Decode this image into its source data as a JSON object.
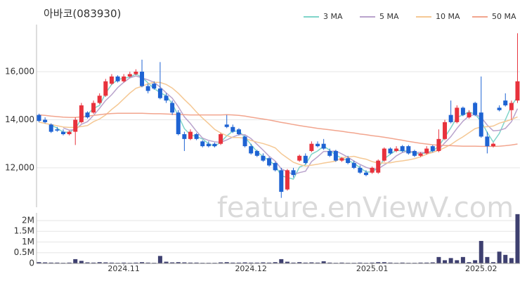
{
  "chart_data": [
    {
      "type": "candlestick",
      "title": "아바코(083930)",
      "watermark": "feature.enViewV.com",
      "up_color": "#e8323c",
      "down_color": "#1e63d3",
      "open": [
        14200,
        14000,
        13800,
        13600,
        13500,
        13400,
        13500,
        13900,
        14300,
        14300,
        14700,
        15000,
        15500,
        15800,
        15600,
        15800,
        15900,
        16000,
        15400,
        15500,
        15300,
        15000,
        14700,
        14300,
        13400,
        13200,
        13400,
        13100,
        13000,
        13000,
        13000,
        13800,
        13700,
        13600,
        13300,
        12900,
        12700,
        12500,
        12400,
        12200,
        11900,
        11100,
        11900,
        12300,
        12500,
        12700,
        13000,
        13000,
        12700,
        12700,
        12300,
        12400,
        12200,
        12000,
        11800,
        11800,
        11800,
        12300,
        12800,
        12700,
        12900,
        12900,
        12700,
        12500,
        12600,
        12900,
        12700,
        13200,
        14200,
        13900,
        14500,
        14100,
        14700,
        14300,
        13300,
        12900,
        14500,
        14800,
        14400,
        14800
      ],
      "high": [
        14250,
        14100,
        13850,
        13700,
        13600,
        13550,
        14100,
        14700,
        14350,
        14800,
        15100,
        15700,
        15900,
        15850,
        15900,
        16000,
        16100,
        16500,
        15500,
        15600,
        16400,
        15100,
        14800,
        14400,
        13500,
        13600,
        13450,
        13150,
        13100,
        13050,
        13450,
        14200,
        13800,
        13650,
        13350,
        13000,
        12750,
        12600,
        12450,
        12250,
        12000,
        11950,
        12000,
        12550,
        12600,
        13100,
        13100,
        13200,
        12800,
        12750,
        12450,
        12500,
        12300,
        12100,
        11900,
        12050,
        12350,
        12850,
        12850,
        12900,
        12950,
        12950,
        12750,
        12650,
        12900,
        12950,
        13600,
        14000,
        14800,
        14600,
        14550,
        14400,
        14750,
        15800,
        13500,
        13050,
        14600,
        15100,
        14800,
        17600
      ],
      "low": [
        13900,
        13850,
        13450,
        13500,
        13350,
        13350,
        12950,
        13850,
        14050,
        14250,
        14650,
        14950,
        15450,
        15550,
        15550,
        15750,
        15850,
        15350,
        15100,
        15250,
        14850,
        14700,
        14200,
        13350,
        12700,
        13150,
        13150,
        12850,
        12850,
        12850,
        12950,
        13650,
        13450,
        13350,
        12850,
        12550,
        12450,
        12250,
        12050,
        11850,
        10750,
        11050,
        11600,
        12250,
        12150,
        12650,
        12850,
        12750,
        12450,
        12250,
        12250,
        12150,
        11950,
        11750,
        11650,
        11750,
        11750,
        12250,
        12550,
        12650,
        12650,
        12550,
        12450,
        12450,
        12550,
        12650,
        12650,
        13150,
        13850,
        13850,
        14150,
        14050,
        14150,
        13250,
        12600,
        12850,
        14350,
        14550,
        14000,
        14700
      ],
      "close": [
        13950,
        13900,
        13500,
        13550,
        13400,
        13500,
        14000,
        14600,
        14100,
        14700,
        15000,
        15600,
        15800,
        15600,
        15800,
        15900,
        16000,
        15400,
        15200,
        15300,
        14900,
        14800,
        14300,
        13400,
        13200,
        13500,
        13200,
        12900,
        12900,
        12900,
        13400,
        13700,
        13500,
        13400,
        12900,
        12600,
        12500,
        12300,
        12100,
        11900,
        11000,
        11900,
        11700,
        12500,
        12200,
        13000,
        12900,
        12800,
        12500,
        12300,
        12400,
        12200,
        12000,
        11800,
        11700,
        12000,
        12300,
        12800,
        12600,
        12800,
        12700,
        12600,
        12500,
        12600,
        12800,
        12700,
        13200,
        13900,
        13900,
        14500,
        14200,
        14300,
        14200,
        13300,
        12900,
        13000,
        14400,
        14600,
        14700,
        15600
      ],
      "series": [
        {
          "name": "3 MA",
          "color": "#7fd4c9",
          "values": [
            null,
            null,
            13780,
            13650,
            13480,
            13480,
            13630,
            14030,
            14230,
            14470,
            14600,
            15100,
            15470,
            15670,
            15730,
            15770,
            15900,
            15770,
            15530,
            15300,
            15130,
            15000,
            14670,
            14170,
            13630,
            13370,
            13300,
            13200,
            13000,
            12900,
            13070,
            13330,
            13530,
            13530,
            13270,
            12970,
            12670,
            12470,
            12300,
            12100,
            11670,
            11600,
            11530,
            12030,
            12130,
            12570,
            12700,
            12900,
            12730,
            12530,
            12400,
            12300,
            12200,
            12000,
            11830,
            11830,
            12000,
            12370,
            12570,
            12730,
            12700,
            12700,
            12600,
            12570,
            12630,
            12700,
            12900,
            13270,
            13670,
            14100,
            14200,
            14330,
            14230,
            13930,
            13470,
            13070,
            13430,
            14000,
            14570,
            14970
          ]
        },
        {
          "name": "5 MA",
          "color": "#b9a3cc",
          "values": [
            null,
            null,
            null,
            null,
            13660,
            13570,
            13590,
            13810,
            13920,
            14180,
            14480,
            14800,
            15040,
            15340,
            15560,
            15740,
            15820,
            15740,
            15660,
            15560,
            15360,
            15120,
            14900,
            14540,
            14120,
            13840,
            13520,
            13240,
            13140,
            13080,
            13060,
            13160,
            13280,
            13380,
            13380,
            13220,
            12980,
            12740,
            12480,
            12280,
            11960,
            11840,
            11720,
            11800,
            11860,
            12260,
            12460,
            12680,
            12680,
            12700,
            12580,
            12440,
            12280,
            12140,
            12020,
            11940,
            11960,
            12120,
            12280,
            12500,
            12640,
            12700,
            12640,
            12640,
            12640,
            12640,
            12760,
            13040,
            13300,
            13640,
            13940,
            14160,
            14220,
            14100,
            13780,
            13540,
            13560,
            13640,
            13920,
            14460
          ]
        },
        {
          "name": "10 MA",
          "color": "#f5c894",
          "values": [
            13900,
            13850,
            13800,
            13750,
            13700,
            13680,
            13680,
            13720,
            13760,
            13920,
            14030,
            14200,
            14430,
            14630,
            14870,
            15110,
            15310,
            15390,
            15500,
            15560,
            15550,
            15470,
            15320,
            15100,
            14840,
            14600,
            14320,
            14070,
            13840,
            13600,
            13450,
            13340,
            13260,
            13260,
            13230,
            13140,
            13070,
            13010,
            12930,
            12830,
            12590,
            12410,
            12230,
            12140,
            12070,
            12110,
            12150,
            12200,
            12240,
            12280,
            12420,
            12450,
            12480,
            12410,
            12360,
            12260,
            12200,
            12200,
            12210,
            12260,
            12290,
            12330,
            12380,
            12460,
            12570,
            12640,
            12730,
            12840,
            12970,
            13140,
            13290,
            13460,
            13630,
            13700,
            13710,
            13740,
            13860,
            13930,
            14010,
            14120
          ]
        },
        {
          "name": "50 MA",
          "color": "#f2a58e",
          "values": [
            14200,
            14180,
            14150,
            14130,
            14110,
            14100,
            14100,
            14120,
            14150,
            14180,
            14210,
            14240,
            14260,
            14270,
            14270,
            14270,
            14270,
            14270,
            14260,
            14250,
            14250,
            14240,
            14230,
            14220,
            14210,
            14200,
            14200,
            14200,
            14200,
            14200,
            14200,
            14210,
            14200,
            14180,
            14150,
            14110,
            14070,
            14030,
            13990,
            13940,
            13890,
            13850,
            13800,
            13760,
            13720,
            13680,
            13640,
            13610,
            13580,
            13550,
            13520,
            13480,
            13450,
            13410,
            13380,
            13340,
            13310,
            13270,
            13230,
            13190,
            13150,
            13100,
            13060,
            13020,
            12990,
            12960,
            12940,
            12930,
            12920,
            12910,
            12900,
            12900,
            12900,
            12890,
            12890,
            12890,
            12900,
            12920,
            12950,
            12990
          ]
        }
      ],
      "ylim": [
        10360,
        17960
      ],
      "yticks": [
        {
          "value": 12000,
          "label": "12,000"
        },
        {
          "value": 14000,
          "label": "14,000"
        },
        {
          "value": 16000,
          "label": "16,000"
        }
      ],
      "grid": true
    },
    {
      "type": "bar",
      "color": "#3e4070",
      "categories": [
        null,
        null,
        null,
        null,
        null,
        null,
        null,
        null,
        null,
        null,
        null,
        null,
        null,
        null,
        "2024.11",
        null,
        null,
        null,
        null,
        null,
        null,
        null,
        null,
        null,
        null,
        null,
        null,
        null,
        null,
        null,
        null,
        null,
        null,
        null,
        null,
        "2024.12",
        null,
        null,
        null,
        null,
        null,
        null,
        null,
        null,
        null,
        null,
        null,
        null,
        null,
        null,
        null,
        null,
        null,
        null,
        null,
        "2025.01",
        null,
        null,
        null,
        null,
        null,
        null,
        null,
        null,
        null,
        null,
        null,
        null,
        null,
        null,
        null,
        null,
        null,
        "2025.02",
        null,
        null,
        null,
        null,
        null,
        null
      ],
      "values": [
        60000,
        50000,
        40000,
        40000,
        30000,
        40000,
        200000,
        120000,
        50000,
        40000,
        60000,
        50000,
        40000,
        30000,
        40000,
        30000,
        40000,
        60000,
        40000,
        30000,
        350000,
        80000,
        50000,
        60000,
        50000,
        40000,
        40000,
        30000,
        30000,
        30000,
        50000,
        60000,
        40000,
        40000,
        50000,
        40000,
        40000,
        50000,
        40000,
        60000,
        200000,
        80000,
        40000,
        60000,
        40000,
        50000,
        40000,
        100000,
        40000,
        30000,
        40000,
        30000,
        30000,
        40000,
        30000,
        40000,
        60000,
        60000,
        40000,
        30000,
        40000,
        30000,
        30000,
        40000,
        40000,
        50000,
        300000,
        150000,
        250000,
        150000,
        300000,
        60000,
        150000,
        1050000,
        300000,
        60000,
        550000,
        400000,
        250000,
        2300000
      ],
      "ylim": [
        0,
        2360000
      ],
      "yticks": [
        0,
        {
          "value": 500000,
          "label": "0.5M"
        },
        {
          "value": 1000000,
          "label": "1M"
        },
        {
          "value": 1500000,
          "label": "1.5M"
        },
        {
          "value": 2000000,
          "label": "2M"
        }
      ],
      "grid": true
    }
  ]
}
